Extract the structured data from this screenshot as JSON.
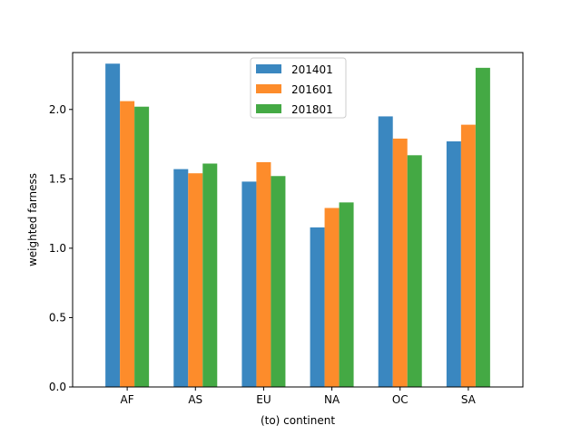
{
  "chart_data": {
    "type": "bar",
    "title": "",
    "xlabel": "(to) continent",
    "ylabel": "weighted farness",
    "categories": [
      "AF",
      "AS",
      "EU",
      "NA",
      "OC",
      "SA"
    ],
    "ylim": [
      0,
      2.41
    ],
    "yticks": [
      0.0,
      0.5,
      1.0,
      1.5,
      2.0
    ],
    "ytick_labels": [
      "0.0",
      "0.5",
      "1.0",
      "1.5",
      "2.0"
    ],
    "grid": false,
    "legend_position": "top-center",
    "series": [
      {
        "name": "201401",
        "color": "#3a87c0",
        "values": [
          2.33,
          1.57,
          1.48,
          1.15,
          1.95,
          1.77
        ]
      },
      {
        "name": "201601",
        "color": "#fd8c2b",
        "values": [
          2.06,
          1.54,
          1.62,
          1.29,
          1.79,
          1.89
        ]
      },
      {
        "name": "201801",
        "color": "#44a944",
        "values": [
          2.02,
          1.61,
          1.52,
          1.33,
          1.67,
          2.3
        ]
      }
    ]
  }
}
